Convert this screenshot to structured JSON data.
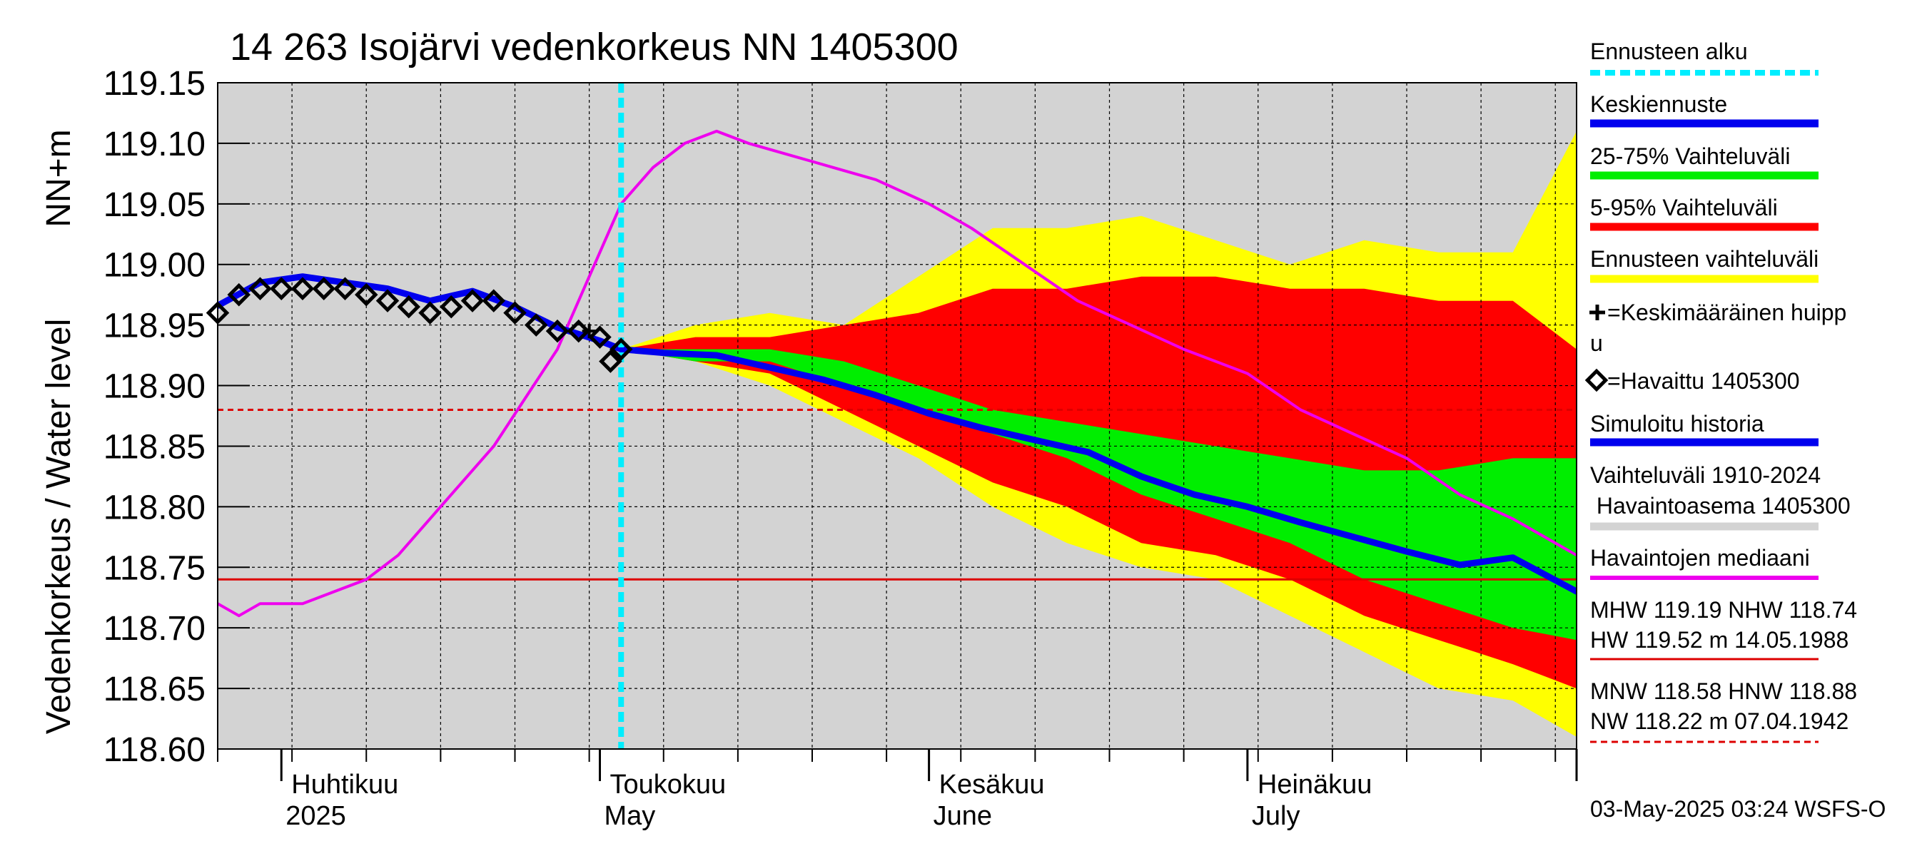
{
  "chart_data": {
    "type": "area",
    "title": "14 263 Isojärvi vedenkorkeus NN 1405300",
    "ylabel": "Vedenkorkeus / Water level",
    "yunit": "NN+m",
    "xlim": [
      "2025-03-26",
      "2025-08-01"
    ],
    "ylim": [
      118.6,
      119.15
    ],
    "grid": true,
    "legend_position": "right",
    "yticks": [
      "118.60",
      "118.65",
      "118.70",
      "118.75",
      "118.80",
      "118.85",
      "118.90",
      "118.95",
      "119.00",
      "119.05",
      "119.10",
      "119.15"
    ],
    "month_labels": [
      {
        "date": "2025-04-01",
        "fi": "Huhtikuu",
        "en": "2025"
      },
      {
        "date": "2025-05-01",
        "fi": "Toukokuu",
        "en": "May"
      },
      {
        "date": "2025-06-01",
        "fi": "Kesäkuu",
        "en": "June"
      },
      {
        "date": "2025-07-01",
        "fi": "Heinäkuu",
        "en": "July"
      }
    ],
    "forecast_start": "2025-05-03",
    "footer": "03-May-2025 03:24 WSFS-O",
    "colors": {
      "historical_range": "#d3d3d3",
      "forecast_range": "#ffff00",
      "range_5_95": "#ff0000",
      "range_25_75": "#00ee00",
      "mean_forecast": "#0000ee",
      "median": "#ee00ee",
      "forecast_start": "#00eeff",
      "reference_lines": "#dd0000"
    },
    "series": {
      "forecast_range": {
        "x": [
          "2025-05-03",
          "2025-05-10",
          "2025-05-17",
          "2025-05-24",
          "2025-05-31",
          "2025-06-07",
          "2025-06-14",
          "2025-06-21",
          "2025-06-28",
          "2025-07-05",
          "2025-07-12",
          "2025-07-19",
          "2025-07-26",
          "2025-08-01"
        ],
        "upper": [
          118.93,
          118.95,
          118.96,
          118.95,
          118.99,
          119.03,
          119.03,
          119.04,
          119.02,
          119.0,
          119.02,
          119.01,
          119.01,
          119.11
        ],
        "lower": [
          118.93,
          118.92,
          118.9,
          118.87,
          118.84,
          118.8,
          118.77,
          118.75,
          118.74,
          118.71,
          118.68,
          118.65,
          118.64,
          118.61
        ]
      },
      "range_5_95": {
        "x": [
          "2025-05-03",
          "2025-05-10",
          "2025-05-17",
          "2025-05-24",
          "2025-05-31",
          "2025-06-07",
          "2025-06-14",
          "2025-06-21",
          "2025-06-28",
          "2025-07-05",
          "2025-07-12",
          "2025-07-19",
          "2025-07-26",
          "2025-08-01"
        ],
        "upper": [
          118.93,
          118.94,
          118.94,
          118.95,
          118.96,
          118.98,
          118.98,
          118.99,
          118.99,
          118.98,
          118.98,
          118.97,
          118.97,
          118.93
        ],
        "lower": [
          118.93,
          118.92,
          118.91,
          118.88,
          118.85,
          118.82,
          118.8,
          118.77,
          118.76,
          118.74,
          118.71,
          118.69,
          118.67,
          118.65
        ]
      },
      "range_25_75": {
        "x": [
          "2025-05-03",
          "2025-05-10",
          "2025-05-17",
          "2025-05-24",
          "2025-05-31",
          "2025-06-07",
          "2025-06-14",
          "2025-06-21",
          "2025-06-28",
          "2025-07-05",
          "2025-07-12",
          "2025-07-19",
          "2025-07-26",
          "2025-08-01"
        ],
        "upper": [
          118.93,
          118.93,
          118.93,
          118.92,
          118.9,
          118.88,
          118.87,
          118.86,
          118.85,
          118.84,
          118.83,
          118.83,
          118.84,
          118.84
        ],
        "lower": [
          118.93,
          118.92,
          118.92,
          118.9,
          118.88,
          118.86,
          118.84,
          118.81,
          118.79,
          118.77,
          118.74,
          118.72,
          118.7,
          118.69
        ]
      },
      "mean_forecast": {
        "name": "Keskiennuste",
        "x": [
          "2025-05-03",
          "2025-05-07",
          "2025-05-12",
          "2025-05-17",
          "2025-05-22",
          "2025-05-27",
          "2025-06-01",
          "2025-06-06",
          "2025-06-11",
          "2025-06-16",
          "2025-06-21",
          "2025-06-26",
          "2025-07-01",
          "2025-07-06",
          "2025-07-11",
          "2025-07-16",
          "2025-07-21",
          "2025-07-26",
          "2025-08-01"
        ],
        "y": [
          118.93,
          118.927,
          118.925,
          118.915,
          118.905,
          118.892,
          118.877,
          118.865,
          118.855,
          118.845,
          118.825,
          118.81,
          118.8,
          118.787,
          118.775,
          118.763,
          118.752,
          118.758,
          118.73
        ]
      },
      "simulated_history": {
        "name": "Simuloitu historia",
        "x": [
          "2025-03-26",
          "2025-03-30",
          "2025-04-03",
          "2025-04-07",
          "2025-04-11",
          "2025-04-15",
          "2025-04-19",
          "2025-04-23",
          "2025-04-27",
          "2025-05-01",
          "2025-05-03"
        ],
        "y": [
          118.966,
          118.985,
          118.99,
          118.985,
          118.98,
          118.97,
          118.978,
          118.965,
          118.948,
          118.937,
          118.93
        ]
      },
      "observed": {
        "name": "Havaittu 1405300",
        "x": [
          "2025-03-26",
          "2025-03-28",
          "2025-03-30",
          "2025-04-01",
          "2025-04-03",
          "2025-04-05",
          "2025-04-07",
          "2025-04-09",
          "2025-04-11",
          "2025-04-13",
          "2025-04-15",
          "2025-04-17",
          "2025-04-19",
          "2025-04-21",
          "2025-04-23",
          "2025-04-25",
          "2025-04-27",
          "2025-04-29",
          "2025-05-01",
          "2025-05-02",
          "2025-05-03"
        ],
        "y": [
          118.96,
          118.975,
          118.98,
          118.98,
          118.98,
          118.98,
          118.98,
          118.975,
          118.97,
          118.965,
          118.96,
          118.965,
          118.97,
          118.97,
          118.96,
          118.95,
          118.945,
          118.945,
          118.94,
          118.92,
          118.93
        ]
      },
      "median": {
        "name": "Havaintojen mediaani",
        "x": [
          "2025-03-26",
          "2025-03-28",
          "2025-03-30",
          "2025-04-03",
          "2025-04-06",
          "2025-04-09",
          "2025-04-12",
          "2025-04-15",
          "2025-04-18",
          "2025-04-21",
          "2025-04-24",
          "2025-04-27",
          "2025-04-30",
          "2025-05-03",
          "2025-05-06",
          "2025-05-09",
          "2025-05-12",
          "2025-05-15",
          "2025-05-19",
          "2025-05-23",
          "2025-05-27",
          "2025-06-01",
          "2025-06-05",
          "2025-06-10",
          "2025-06-15",
          "2025-06-20",
          "2025-06-25",
          "2025-07-01",
          "2025-07-06",
          "2025-07-11",
          "2025-07-16",
          "2025-07-21",
          "2025-07-26",
          "2025-08-01"
        ],
        "y": [
          118.72,
          118.71,
          118.72,
          118.72,
          118.73,
          118.74,
          118.76,
          118.79,
          118.82,
          118.85,
          118.89,
          118.93,
          118.99,
          119.05,
          119.08,
          119.1,
          119.11,
          119.1,
          119.09,
          119.08,
          119.07,
          119.05,
          119.03,
          119.0,
          118.97,
          118.95,
          118.93,
          118.91,
          118.88,
          118.86,
          118.84,
          118.81,
          118.79,
          118.76
        ]
      },
      "mean_peak": {
        "name": "Keskimääräinen huippu",
        "x": "2025-04-30",
        "y": 118.945
      }
    },
    "reference_lines": [
      {
        "name": "NHW",
        "y": 118.74,
        "style": "solid"
      },
      {
        "name": "HNW",
        "y": 118.88,
        "style": "dashed"
      }
    ]
  },
  "legend": {
    "forecast_start": "Ennusteen alku",
    "mean_forecast": "Keskiennuste",
    "range_25_75": "25-75% Vaihteluväli",
    "range_5_95": "5-95% Vaihteluväli",
    "forecast_range": "Ennusteen vaihteluväli",
    "mean_peak_1": "=Keskimääräinen huipp",
    "mean_peak_2": "u",
    "observed": "=Havaittu 1405300",
    "simulated": "Simuloitu historia",
    "historical_range_1": "Vaihteluväli 1910-2024",
    "historical_range_2": " Havaintoasema 1405300",
    "median": "Havaintojen mediaani",
    "stats_1": "MHW 119.19 NHW 118.74",
    "stats_2": "HW 119.52 m 14.05.1988",
    "stats_3": "MNW 118.58 HNW 118.88",
    "stats_4": "NW 118.22 m 07.04.1942"
  }
}
